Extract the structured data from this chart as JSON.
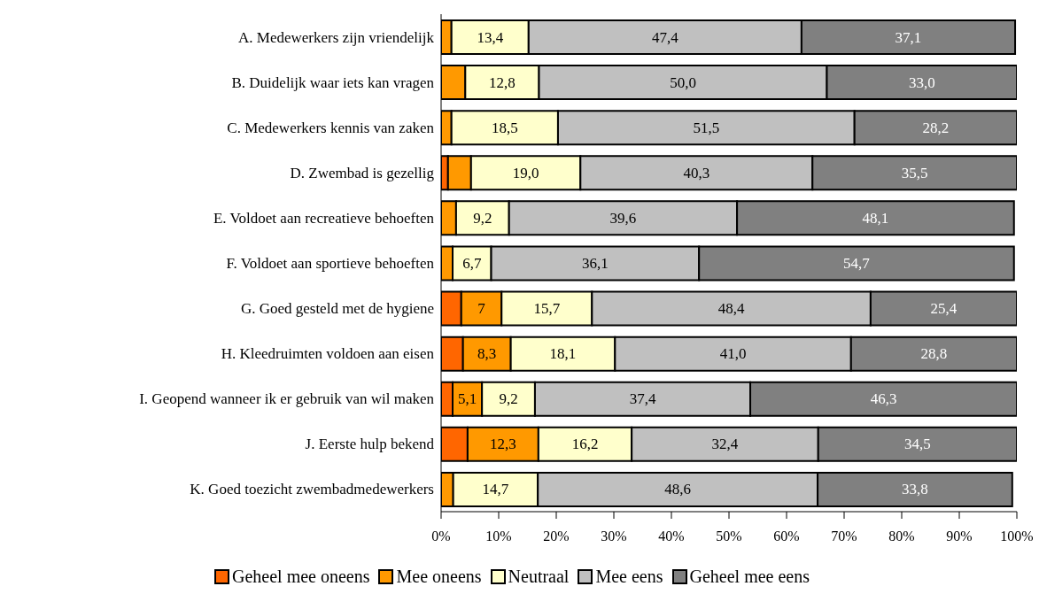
{
  "chart_data": {
    "type": "bar",
    "orientation": "horizontal",
    "stacked": true,
    "categories": [
      "A. Medewerkers zijn vriendelijk",
      "B. Duidelijk waar iets kan vragen",
      "C. Medewerkers kennis van zaken",
      "D. Zwembad is gezellig",
      "E. Voldoet aan recreatieve behoeften",
      "F. Voldoet aan sportieve behoeften",
      "G. Goed gesteld met de hygiene",
      "H. Kleedruimten voldoen aan eisen",
      "I. Geopend wanneer ik er gebruik van wil maken",
      "J. Eerste hulp bekend",
      "K. Goed toezicht zwembadmedewerkers"
    ],
    "series": [
      {
        "name": "Geheel mee oneens",
        "color": "#ff6600",
        "values": [
          null,
          0,
          0,
          1.2,
          null,
          null,
          3.5,
          3.8,
          2.0,
          4.6,
          null
        ]
      },
      {
        "name": "Mee oneens",
        "color": "#ff9900",
        "values": [
          1.8,
          4.2,
          1.8,
          4.0,
          2.6,
          2.0,
          7,
          8.3,
          5.1,
          12.3,
          2.1
        ],
        "value_labels": [
          null,
          null,
          null,
          null,
          null,
          null,
          "7",
          "8,3",
          "5,1",
          "12,3",
          null
        ]
      },
      {
        "name": "Neutraal",
        "color": "#ffffcc",
        "values": [
          13.4,
          12.8,
          18.5,
          19.0,
          9.2,
          6.7,
          15.7,
          18.1,
          9.2,
          16.2,
          14.7
        ],
        "value_labels": [
          "13,4",
          "12,8",
          "18,5",
          "19,0",
          "9,2",
          "6,7",
          "15,7",
          "18,1",
          "9,2",
          "16,2",
          "14,7"
        ]
      },
      {
        "name": "Mee eens",
        "color": "#c0c0c0",
        "values": [
          47.4,
          50.0,
          51.5,
          40.3,
          39.6,
          36.1,
          48.4,
          41.0,
          37.4,
          32.4,
          48.6
        ],
        "value_labels": [
          "47,4",
          "50,0",
          "51,5",
          "40,3",
          "39,6",
          "36,1",
          "48,4",
          "41,0",
          "37,4",
          "32,4",
          "48,6"
        ]
      },
      {
        "name": "Geheel mee eens",
        "color": "#808080",
        "values": [
          37.1,
          33.0,
          28.2,
          35.5,
          48.1,
          54.7,
          25.4,
          28.8,
          46.3,
          34.5,
          33.8
        ],
        "value_labels": [
          "37,1",
          "33,0",
          "28,2",
          "35,5",
          "48,1",
          "54,7",
          "25,4",
          "28,8",
          "46,3",
          "34,5",
          "33,8"
        ]
      }
    ],
    "xlim": [
      0,
      100
    ],
    "xticks": [
      {
        "value": 0,
        "label": "0%"
      },
      {
        "value": 10,
        "label": "10%"
      },
      {
        "value": 20,
        "label": "20%"
      },
      {
        "value": 30,
        "label": "30%"
      },
      {
        "value": 40,
        "label": "40%"
      },
      {
        "value": 50,
        "label": "50%"
      },
      {
        "value": 60,
        "label": "60%"
      },
      {
        "value": 70,
        "label": "70%"
      },
      {
        "value": 80,
        "label": "80%"
      },
      {
        "value": 90,
        "label": "90%"
      },
      {
        "value": 100,
        "label": "100%"
      }
    ],
    "grid": false,
    "legend": "bottom"
  }
}
